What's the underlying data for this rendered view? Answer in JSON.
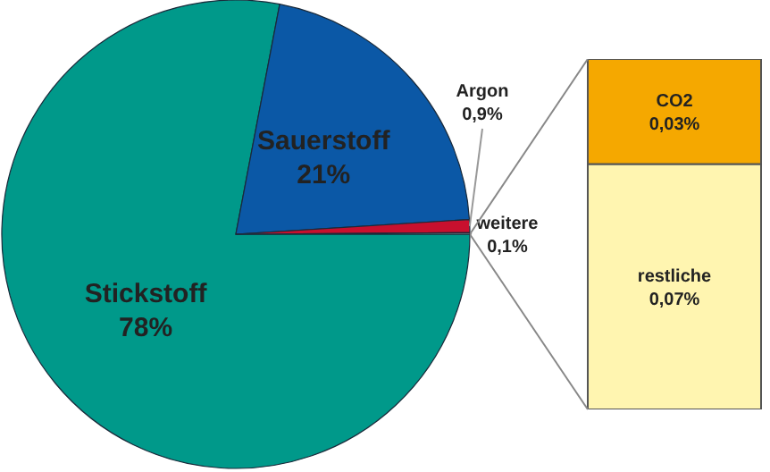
{
  "chart_data": [
    {
      "type": "pie",
      "categories": [
        "Stickstoff",
        "Sauerstoff",
        "Argon",
        "weitere"
      ],
      "values": [
        78,
        21,
        0.9,
        0.1
      ],
      "value_labels": [
        "78%",
        "21%",
        "0,9%",
        "0,1%"
      ],
      "colors": [
        "#00998a",
        "#0b58a6",
        "#c8102e",
        "#9a9a9a"
      ],
      "legend": false
    },
    {
      "type": "bar",
      "stacked": true,
      "categories": [
        null
      ],
      "ylim": [
        0,
        0.1
      ],
      "tick_labels": false,
      "legend": false,
      "series": [
        {
          "name": "restliche",
          "color": "#fff5b0",
          "values": [
            0.07
          ],
          "value_labels": [
            "0,07%"
          ]
        },
        {
          "name": "CO2",
          "color": "#f5a800",
          "values": [
            0.03
          ],
          "value_labels": [
            "0,03%"
          ]
        }
      ]
    }
  ]
}
